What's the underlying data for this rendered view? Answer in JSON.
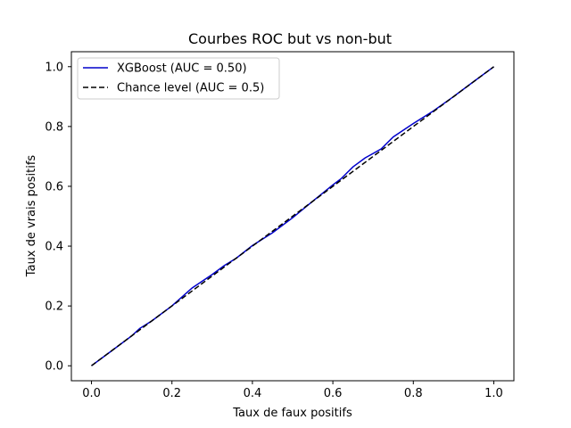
{
  "chart_data": {
    "type": "line",
    "title": "Courbes ROC but vs non-but",
    "xlabel": "Taux de faux positifs",
    "ylabel": "Taux de vrais positifs",
    "xlim": [
      -0.05,
      1.05
    ],
    "ylim": [
      -0.05,
      1.05
    ],
    "xticks": [
      0.0,
      0.2,
      0.4,
      0.6,
      0.8,
      1.0
    ],
    "yticks": [
      0.0,
      0.2,
      0.4,
      0.6,
      0.8,
      1.0
    ],
    "xtick_labels": [
      "0.0",
      "0.2",
      "0.4",
      "0.6",
      "0.8",
      "1.0"
    ],
    "ytick_labels": [
      "0.0",
      "0.2",
      "0.4",
      "0.6",
      "0.8",
      "1.0"
    ],
    "grid": false,
    "legend_position": "top-left",
    "series": [
      {
        "name": "XGBoost (AUC = 0.50)",
        "color": "#0000cc",
        "style": "solid",
        "x": [
          0.0,
          0.05,
          0.1,
          0.12,
          0.15,
          0.2,
          0.25,
          0.3,
          0.33,
          0.36,
          0.4,
          0.45,
          0.5,
          0.55,
          0.6,
          0.62,
          0.65,
          0.68,
          0.7,
          0.72,
          0.75,
          0.78,
          0.8,
          0.85,
          0.9,
          0.95,
          1.0
        ],
        "y": [
          0.0,
          0.05,
          0.1,
          0.125,
          0.15,
          0.2,
          0.26,
          0.305,
          0.335,
          0.36,
          0.402,
          0.445,
          0.495,
          0.55,
          0.605,
          0.625,
          0.665,
          0.695,
          0.71,
          0.725,
          0.765,
          0.792,
          0.81,
          0.852,
          0.9,
          0.95,
          1.0
        ]
      },
      {
        "name": "Chance level (AUC = 0.5)",
        "color": "#000000",
        "style": "dashed",
        "x": [
          0.0,
          1.0
        ],
        "y": [
          0.0,
          1.0
        ]
      }
    ]
  }
}
